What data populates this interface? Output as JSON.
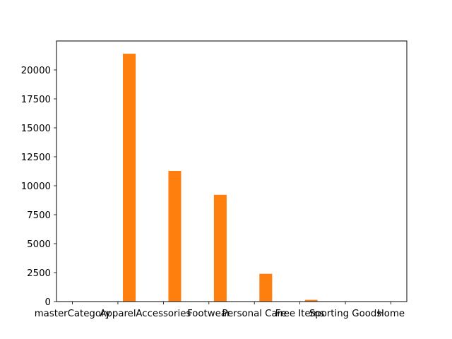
{
  "chart_data": {
    "type": "bar",
    "title": "",
    "xlabel": "",
    "ylabel": "",
    "bar_color": "#ff7f0e",
    "grid": false,
    "x_tick_labels": [
      "masterCategory",
      "Apparel",
      "Accessories",
      "Footwear",
      "Personal Care",
      "Free Items",
      "Sporting Goods",
      "Home"
    ],
    "y_ticks": [
      0,
      2500,
      5000,
      7500,
      10000,
      12500,
      15000,
      17500,
      20000
    ],
    "ylim": [
      0,
      22500
    ],
    "bars": [
      {
        "x": 1.25,
        "value": 21400
      },
      {
        "x": 2.25,
        "value": 11280
      },
      {
        "x": 3.25,
        "value": 9220
      },
      {
        "x": 4.25,
        "value": 2400
      },
      {
        "x": 5.25,
        "value": 147
      }
    ],
    "xlim": [
      -0.35,
      7.35
    ]
  }
}
